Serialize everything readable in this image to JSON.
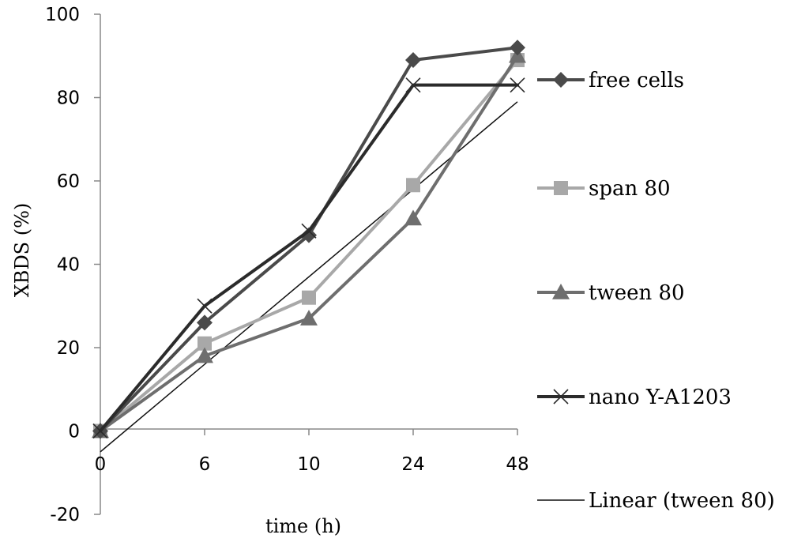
{
  "chart_data": {
    "type": "line",
    "categories": [
      "0",
      "6",
      "10",
      "24",
      "48"
    ],
    "y_ticks": [
      "-20",
      "0",
      "20",
      "40",
      "60",
      "80",
      "100"
    ],
    "ylabel": "XBDS (%)",
    "xlabel": "time (h)",
    "ylim": [
      -20,
      100
    ],
    "grid": false,
    "legend_position": "right",
    "series": [
      {
        "name": "free cells",
        "values": [
          0,
          26,
          47,
          89,
          92
        ],
        "marker": "diamond",
        "color": "#4a4a4a"
      },
      {
        "name": "span 80",
        "values": [
          0,
          21,
          32,
          59,
          89
        ],
        "marker": "square",
        "color": "#a8a8a8"
      },
      {
        "name": "tween 80",
        "values": [
          0,
          18,
          27,
          51,
          90
        ],
        "marker": "triangle",
        "color": "#6e6e6e"
      },
      {
        "name": "nano Y-A1203",
        "values": [
          0,
          30,
          48,
          83,
          83
        ],
        "marker": "x",
        "color": "#2b2b2b"
      }
    ],
    "trendline": {
      "name": "Linear (tween 80)",
      "of_series": "tween 80",
      "start_value": -5,
      "end_value": 79,
      "color": "#111111"
    }
  }
}
